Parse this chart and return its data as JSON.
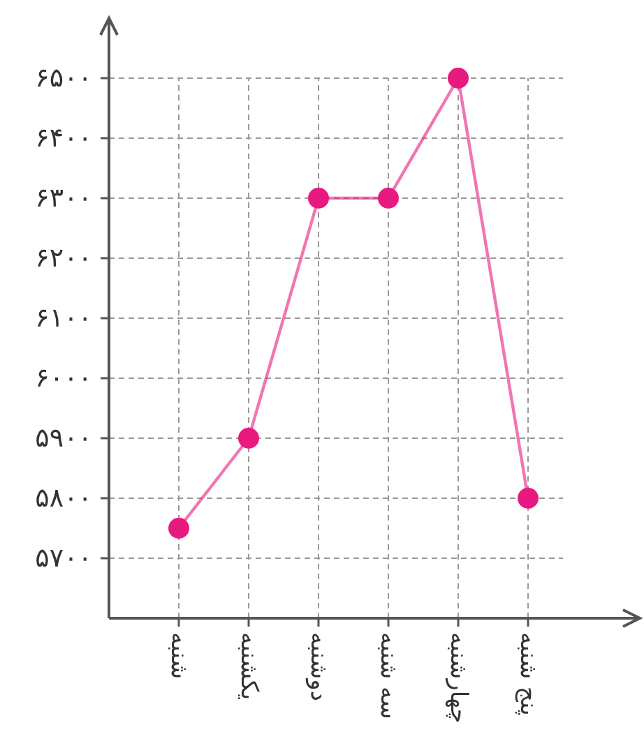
{
  "chart_data": {
    "type": "line",
    "categories": [
      "شنبه",
      "یکشنبه",
      "دوشنبه",
      "سه شنبه",
      "چهارشنبه",
      "پنج شنبه"
    ],
    "series": [
      {
        "color": "#e8197f",
        "values": [
          5750,
          5900,
          6300,
          6300,
          6500,
          5800
        ]
      }
    ],
    "ylim": [
      5600,
      6600
    ],
    "yticks": [
      {
        "value": 5700,
        "label": "۵۷۰۰"
      },
      {
        "value": 5800,
        "label": "۵۸۰۰"
      },
      {
        "value": 5900,
        "label": "۵۹۰۰"
      },
      {
        "value": 6000,
        "label": "۶۰۰۰"
      },
      {
        "value": 6100,
        "label": "۶۱۰۰"
      },
      {
        "value": 6200,
        "label": "۶۲۰۰"
      },
      {
        "value": 6300,
        "label": "۶۳۰۰"
      },
      {
        "value": 6400,
        "label": "۶۴۰۰"
      },
      {
        "value": 6500,
        "label": "۶۵۰۰"
      }
    ],
    "grid": true,
    "marker": "circle",
    "line_style": "solid"
  }
}
